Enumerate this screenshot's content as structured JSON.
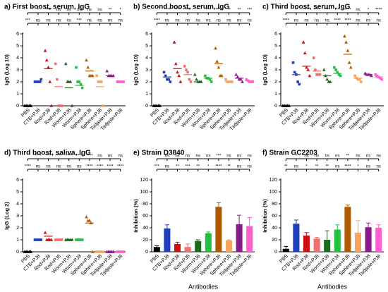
{
  "chart_data": [
    {
      "type": "dot",
      "title": "a)  First boost, serum, IgG",
      "ylabel": "IgG (Log 10)",
      "categories": [
        "PBS",
        "CTB+PJ8",
        "Rod+PJ8",
        "Rod+PJ8",
        "Worm+PJ8",
        "Worm+PJ8",
        "Sphere+PJ8",
        "Sphere+PJ8",
        "Tadpole+PJ8",
        "Tadpole+PJ8"
      ],
      "colors": [
        "#000000",
        "#1f3fbf",
        "#cc1111",
        "#f07070",
        "#1a6b1a",
        "#22c040",
        "#b05a00",
        "#f4a460",
        "#8b1a8b",
        "#ff5fcf"
      ],
      "points": [
        [
          0,
          0,
          0,
          0,
          0
        ],
        [
          2,
          2,
          2,
          2,
          2.2
        ],
        [
          4.6,
          3.8,
          3.2,
          2,
          0
        ],
        [
          3.5,
          2.2,
          0,
          0,
          0
        ],
        [
          3.5,
          2,
          2,
          2,
          0
        ],
        [
          3.2,
          2,
          2,
          1.8,
          1.5
        ],
        [
          3.8,
          3.2,
          2.5,
          2.5,
          2.5
        ],
        [
          2.5,
          2,
          2,
          2,
          0
        ],
        [
          2.9,
          2.5,
          2.5,
          2.5,
          2.5
        ],
        [
          2,
          2,
          2,
          2,
          2
        ]
      ],
      "means": [
        0,
        2,
        3.1,
        1.6,
        1.5,
        1.7,
        2.9,
        1.6,
        2.5,
        2
      ],
      "ylim": [
        0,
        6
      ],
      "yticks": [
        0,
        1,
        2,
        3,
        4,
        5,
        6
      ],
      "sig_row1": [
        "*",
        "****",
        "ns",
        "ns",
        "ns",
        "ns",
        "ns",
        "**",
        "*"
      ],
      "sig_row2": [
        "***",
        "ns",
        "ns",
        "ns",
        "ns",
        "***",
        "ns",
        "ns",
        "ns",
        "ns"
      ]
    },
    {
      "type": "dot",
      "title": "b)  Second boost, serum, IgG",
      "ylabel": "IgG (Log 10)",
      "categories": [
        "PBS",
        "CTB+PJ8",
        "Rod+PJ8",
        "Rod+PJ8",
        "Worm+PJ8",
        "Worm+PJ8",
        "Sphere+PJ8",
        "Sphere+PJ8",
        "Tadpole+PJ8",
        "Tadpole+PJ8"
      ],
      "colors": [
        "#000000",
        "#1f3fbf",
        "#cc1111",
        "#f07070",
        "#1a6b1a",
        "#22c040",
        "#b05a00",
        "#f4a460",
        "#8b1a8b",
        "#ff5fcf"
      ],
      "points": [
        [
          0,
          0,
          0,
          0,
          0
        ],
        [
          2.8,
          2.5,
          2.2,
          2.2,
          2
        ],
        [
          5.3,
          3.5,
          2.8,
          2.5,
          2
        ],
        [
          3.3,
          3,
          2.8,
          2.2,
          2
        ],
        [
          2.6,
          2.2,
          2,
          2,
          2
        ],
        [
          2.5,
          2.3,
          2.3,
          2.2,
          2
        ],
        [
          4.8,
          3.7,
          3.2,
          2.5,
          2.5
        ],
        [
          2.2,
          2,
          2,
          2,
          2
        ],
        [
          2.6,
          2.4,
          2.2,
          2.2,
          2
        ],
        [
          2.2,
          2.1,
          2,
          2,
          2
        ]
      ],
      "means": [
        0,
        2.4,
        3.1,
        2.6,
        2,
        2.3,
        3.5,
        2,
        2.3,
        2.1
      ],
      "ylim": [
        0,
        6
      ],
      "yticks": [
        0,
        1,
        2,
        3,
        4,
        5,
        6
      ],
      "sig_row1": [
        "****",
        "****",
        "****",
        "**",
        "***",
        "****",
        "**",
        "**",
        "***"
      ],
      "sig_row2": [
        "****",
        "ns",
        "ns",
        "ns",
        "ns",
        "ns",
        "ns",
        "ns",
        "ns",
        "ns"
      ]
    },
    {
      "type": "dot",
      "title": "c)  Third boost, serum, IgG",
      "ylabel": "IgG (Log 10)",
      "categories": [
        "PBS",
        "CTB+PJ8",
        "Rod+PJ8",
        "Rod+PJ8",
        "Worm+PJ8",
        "Worm+PJ8",
        "Sphere+PJ8",
        "Sphere+PJ8",
        "Tadpole+PJ8",
        "Tadpole+PJ8"
      ],
      "colors": [
        "#000000",
        "#1f3fbf",
        "#cc1111",
        "#f07070",
        "#1a6b1a",
        "#22c040",
        "#b05a00",
        "#f4a460",
        "#8b1a8b",
        "#ff5fcf"
      ],
      "points": [
        [
          0,
          0,
          0,
          0,
          0
        ],
        [
          3.6,
          2.8,
          2.6,
          2,
          1.8
        ],
        [
          5.3,
          4.4,
          3.2,
          3,
          2.5
        ],
        [
          4,
          3,
          2.6,
          2.6,
          2.6
        ],
        [
          3,
          2.5,
          2.2,
          2,
          2
        ],
        [
          3.2,
          3,
          2.8,
          2.6,
          2.5
        ],
        [
          5.8,
          5.3,
          4.6,
          3.6,
          3.2
        ],
        [
          2.5,
          2.3,
          2.2,
          2.2,
          2
        ],
        [
          2.7,
          2.6,
          2.6,
          2.6,
          2.5
        ],
        [
          2.6,
          2.5,
          2.4,
          2.3,
          2.2
        ]
      ],
      "means": [
        0,
        2.6,
        3.3,
        2.9,
        2.5,
        2.7,
        4.3,
        2.3,
        2.6,
        2.4
      ],
      "ylim": [
        0,
        6
      ],
      "yticks": [
        0,
        1,
        2,
        3,
        4,
        5,
        6
      ],
      "sig_row1": [
        "**",
        "****",
        "****",
        "****",
        "**",
        "****",
        "ns",
        "*",
        "****"
      ],
      "sig_row2": [
        "****",
        "ns",
        "ns",
        "ns",
        "ns",
        "****",
        "****",
        "ns",
        "ns",
        "ns"
      ]
    },
    {
      "type": "dot",
      "title": "d)  Third boost, saliva, IgG",
      "ylabel": "IgG (Log 2)",
      "categories": [
        "PBS",
        "CTB+PJ8",
        "Rod+PJ8",
        "Rod+PJ8",
        "Worm+PJ8",
        "Worm+PJ8",
        "Sphere+PJ8",
        "Sphere+PJ8",
        "Tadpole+PJ8",
        "Tadpole+PJ8"
      ],
      "colors": [
        "#000000",
        "#1f3fbf",
        "#cc1111",
        "#f07070",
        "#1a6b1a",
        "#22c040",
        "#b05a00",
        "#f4a460",
        "#8b1a8b",
        "#ff5fcf"
      ],
      "points": [
        [
          0,
          0,
          0,
          0,
          0
        ],
        [
          1,
          1,
          1,
          1,
          1
        ],
        [
          1.6,
          1,
          1,
          1,
          1
        ],
        [
          1,
          1,
          1,
          1,
          1
        ],
        [
          1,
          1,
          1,
          1,
          1
        ],
        [
          1,
          1,
          1,
          1,
          1
        ],
        [
          2.9,
          2.6,
          2.6,
          2.4,
          0
        ],
        [
          0,
          0,
          0,
          0,
          0
        ],
        [
          0,
          0,
          0,
          0,
          0
        ],
        [
          0,
          0,
          0,
          0,
          0
        ]
      ],
      "means": [
        0,
        1,
        1.3,
        1,
        1,
        1,
        2.4,
        0,
        0,
        0
      ],
      "ylim": [
        0,
        6
      ],
      "yticks": [
        0,
        1,
        2,
        3,
        4,
        5,
        6
      ],
      "sig_row1": [
        "****",
        "****",
        "****",
        "****",
        "****",
        "****",
        "ns",
        "ns",
        "ns"
      ],
      "sig_row2": [
        "****",
        "ns",
        "ns",
        "ns",
        "ns",
        "ns",
        "****",
        "****",
        "****",
        "****"
      ]
    },
    {
      "type": "bar",
      "title": "e)  Strain D3840",
      "ylabel": "Inhibition (%)",
      "xlabel": "Antibodies",
      "categories": [
        "PBS",
        "CTB+PJ8",
        "Rod+PJ8",
        "Rod+PJ8",
        "Worm+PJ8",
        "Worm+PJ8",
        "Sphere+PJ8",
        "Sphere+PJ8",
        "Tadpole+PJ8",
        "Tadpole+PJ8"
      ],
      "colors": [
        "#000000",
        "#1f3fbf",
        "#cc1111",
        "#f07070",
        "#1a6b1a",
        "#22c040",
        "#b05a00",
        "#f4a460",
        "#8b1a8b",
        "#ff5fcf"
      ],
      "values": [
        8,
        39,
        13,
        8,
        18,
        31,
        75,
        19,
        46,
        43
      ],
      "errors": [
        2,
        6,
        3,
        5,
        2,
        2,
        7,
        1,
        15,
        14
      ],
      "ylim": [
        0,
        120
      ],
      "yticks": [
        0,
        20,
        40,
        60,
        80,
        100,
        120
      ],
      "sig_row1": [
        "ns",
        "ns",
        "ns",
        "ns",
        "ns",
        "***",
        "ns",
        "ns",
        "ns"
      ],
      "sig_row2": [
        "***",
        "ns",
        "**",
        "***",
        "**",
        "*",
        "****",
        "**",
        "ns",
        "ns"
      ]
    },
    {
      "type": "bar",
      "title": "f)  Strain GC2203",
      "ylabel": "Inhibition (%)",
      "xlabel": "Antibodies",
      "categories": [
        "PBS",
        "CTB+PJ8",
        "Rod+PJ8",
        "Rod+PJ8",
        "Worm+PJ8",
        "Worm+PJ8",
        "Sphere+PJ8",
        "Sphere+PJ8",
        "Tadpole+PJ8",
        "Tadpole+PJ8"
      ],
      "colors": [
        "#000000",
        "#1f3fbf",
        "#cc1111",
        "#f07070",
        "#1a6b1a",
        "#22c040",
        "#b05a00",
        "#f4a460",
        "#8b1a8b",
        "#ff5fcf"
      ],
      "values": [
        5,
        47,
        27,
        22,
        20,
        37,
        75,
        32,
        41,
        40
      ],
      "errors": [
        4,
        6,
        5,
        2,
        15,
        8,
        3,
        20,
        7,
        5
      ],
      "ylim": [
        0,
        120
      ],
      "yticks": [
        0,
        20,
        40,
        60,
        80,
        100,
        120
      ],
      "sig_row1": [
        "*",
        "ns",
        "ns",
        "ns",
        "ns",
        "**",
        "ns",
        "ns",
        "ns"
      ],
      "sig_row2": [
        "**",
        "ns",
        "*",
        "**",
        "**",
        "ns",
        "****",
        "*",
        "ns",
        "ns"
      ]
    }
  ]
}
